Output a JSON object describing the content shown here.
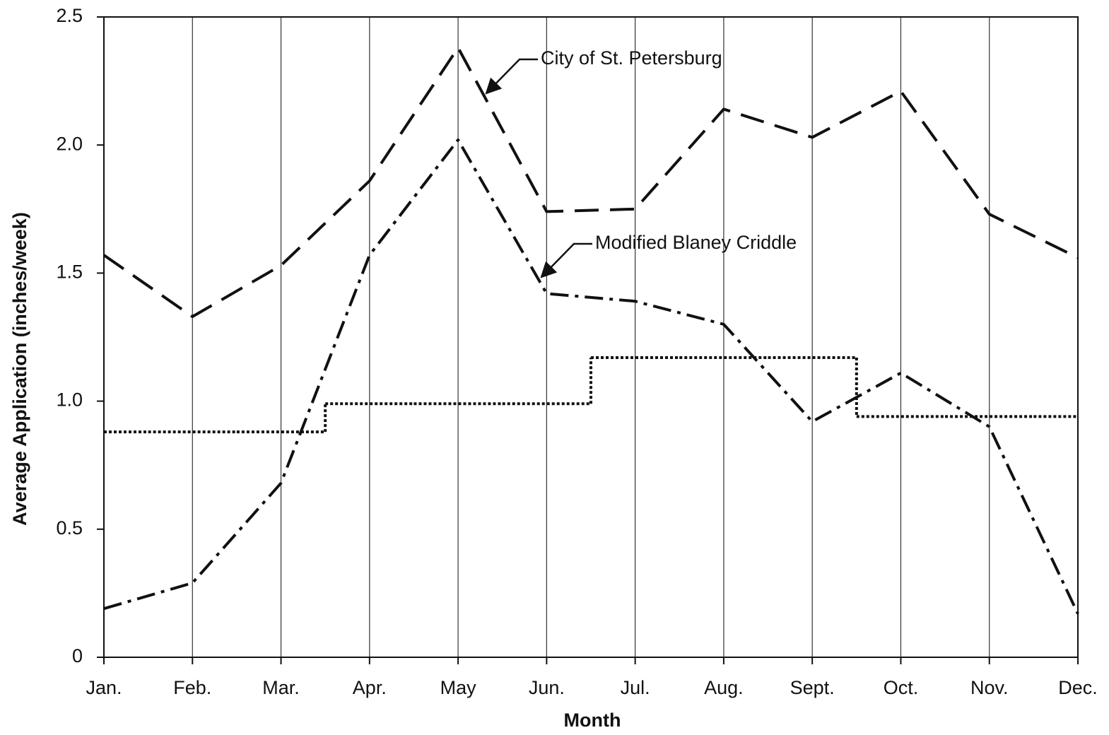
{
  "chart_data": {
    "type": "line",
    "x_label": "Month",
    "y_label": "Average Application (inches/week)",
    "categories": [
      "Jan.",
      "Feb.",
      "Mar.",
      "Apr.",
      "May",
      "Jun.",
      "Jul.",
      "Aug.",
      "Sept.",
      "Oct.",
      "Nov.",
      "Dec."
    ],
    "ylim": [
      0,
      2.5
    ],
    "yticks": [
      0,
      0.5,
      {
        "value": 1,
        "label": "1.0"
      },
      1.5,
      {
        "value": 2,
        "label": "2.0"
      },
      2.5
    ],
    "x_grid": true,
    "series": [
      {
        "name": "City of St. Petersburg",
        "color": "#111111",
        "style": "dashed",
        "values": [
          1.57,
          1.33,
          1.53,
          1.86,
          2.38,
          1.74,
          1.75,
          2.14,
          2.03,
          2.21,
          1.73,
          1.56
        ]
      },
      {
        "name": "Modified Blaney Criddle",
        "color": "#111111",
        "style": "dashdot",
        "values": [
          0.19,
          0.29,
          0.68,
          1.57,
          2.02,
          1.42,
          1.39,
          1.3,
          0.92,
          1.11,
          0.9,
          0.17
        ]
      },
      {
        "color": "#111111",
        "style": "dotted",
        "step": true,
        "values": [
          0.88,
          0.88,
          0.88,
          0.99,
          0.99,
          0.99,
          1.17,
          1.17,
          1.17,
          0.94,
          0.94,
          0.94
        ]
      }
    ]
  }
}
